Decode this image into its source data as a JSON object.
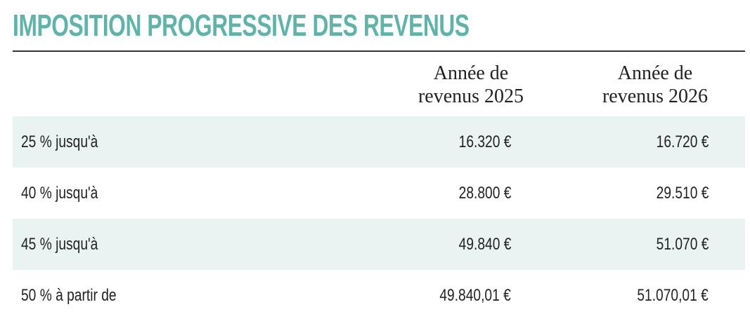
{
  "title": "IMPOSITION PROGRESSIVE DES REVENUS",
  "columns": [
    "Année de revenus 2025",
    "Année de revenus 2026"
  ],
  "column_lines": [
    [
      "Année de",
      "revenus 2025"
    ],
    [
      "Année de",
      "revenus 2026"
    ]
  ],
  "rows": [
    {
      "label": "25 % jusqu'à",
      "values": [
        "16.320 €",
        "16.720 €"
      ]
    },
    {
      "label": "40 % jusqu'à",
      "values": [
        "28.800 €",
        "29.510 €"
      ]
    },
    {
      "label": "45 % jusqu'à",
      "values": [
        "49.840 €",
        "51.070 €"
      ]
    },
    {
      "label": "50 % à partir de",
      "values": [
        "49.840,01 €",
        "51.070,01 €"
      ]
    }
  ],
  "colors": {
    "title": "#5fb3a9",
    "row_shade": "#e9f3f1"
  }
}
